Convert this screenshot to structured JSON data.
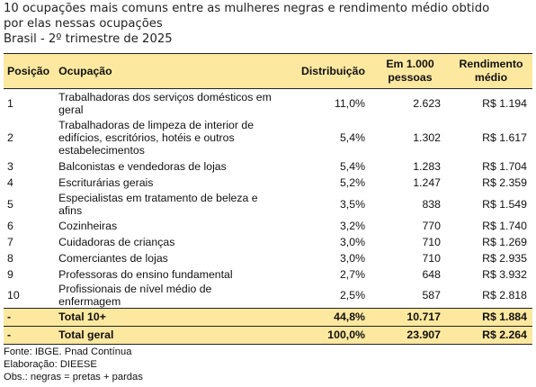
{
  "title": {
    "line1": "10 ocupações mais comuns entre as mulheres negras e rendimento médio obtido",
    "line2": "por elas nessas ocupações",
    "line3": "Brasil - 2º trimestre de 2025"
  },
  "headers": {
    "posicao": "Posição",
    "ocupacao": "Ocupação",
    "distribuicao": "Distribuição",
    "por_mil_1": "Em 1.000",
    "por_mil_2": "pessoas",
    "rendimento_1": "Rendimento",
    "rendimento_2": "médio"
  },
  "rows": [
    {
      "pos": "1",
      "occ": "Trabalhadoras dos serviços domésticos em geral",
      "dist": "11,0%",
      "per": "2.623",
      "rend": "R$ 1.194"
    },
    {
      "pos": "2",
      "occ": "Trabalhadoras de limpeza de interior de edifícios, escritórios, hotéis e outros estabelecimentos",
      "dist": "5,4%",
      "per": "1.302",
      "rend": "R$ 1.617"
    },
    {
      "pos": "3",
      "occ": "Balconistas e vendedoras de lojas",
      "dist": "5,4%",
      "per": "1.283",
      "rend": "R$ 1.704"
    },
    {
      "pos": "4",
      "occ": "Escriturárias gerais",
      "dist": "5,2%",
      "per": "1.247",
      "rend": "R$ 2.359"
    },
    {
      "pos": "5",
      "occ": "Especialistas em tratamento de beleza e afins",
      "dist": "3,5%",
      "per": "838",
      "rend": "R$ 1.549"
    },
    {
      "pos": "6",
      "occ": "Cozinheiras",
      "dist": "3,2%",
      "per": "770",
      "rend": "R$ 1.740"
    },
    {
      "pos": "7",
      "occ": "Cuidadoras de crianças",
      "dist": "3,0%",
      "per": "710",
      "rend": "R$ 1.269"
    },
    {
      "pos": "8",
      "occ": "Comerciantes de lojas",
      "dist": "3,0%",
      "per": "710",
      "rend": "R$ 2.935"
    },
    {
      "pos": "9",
      "occ": "Professoras do ensino fundamental",
      "dist": "2,7%",
      "per": "648",
      "rend": "R$ 3.932"
    },
    {
      "pos": "10",
      "occ": "Profissionais de nível médio de enfermagem",
      "dist": "2,5%",
      "per": "587",
      "rend": "R$ 2.818"
    }
  ],
  "totals": [
    {
      "pos": "-",
      "occ": "Total 10+",
      "dist": "44,8%",
      "per": "10.717",
      "rend": "R$ 1.884"
    },
    {
      "pos": "-",
      "occ": "Total geral",
      "dist": "100,0%",
      "per": "23.907",
      "rend": "R$ 2.264"
    }
  ],
  "notes": {
    "fonte": "Fonte: IBGE. Pnad Contínua",
    "elaboracao": "Elaboração: DIEESE",
    "obs": "Obs.: negras = pretas + pardas"
  }
}
